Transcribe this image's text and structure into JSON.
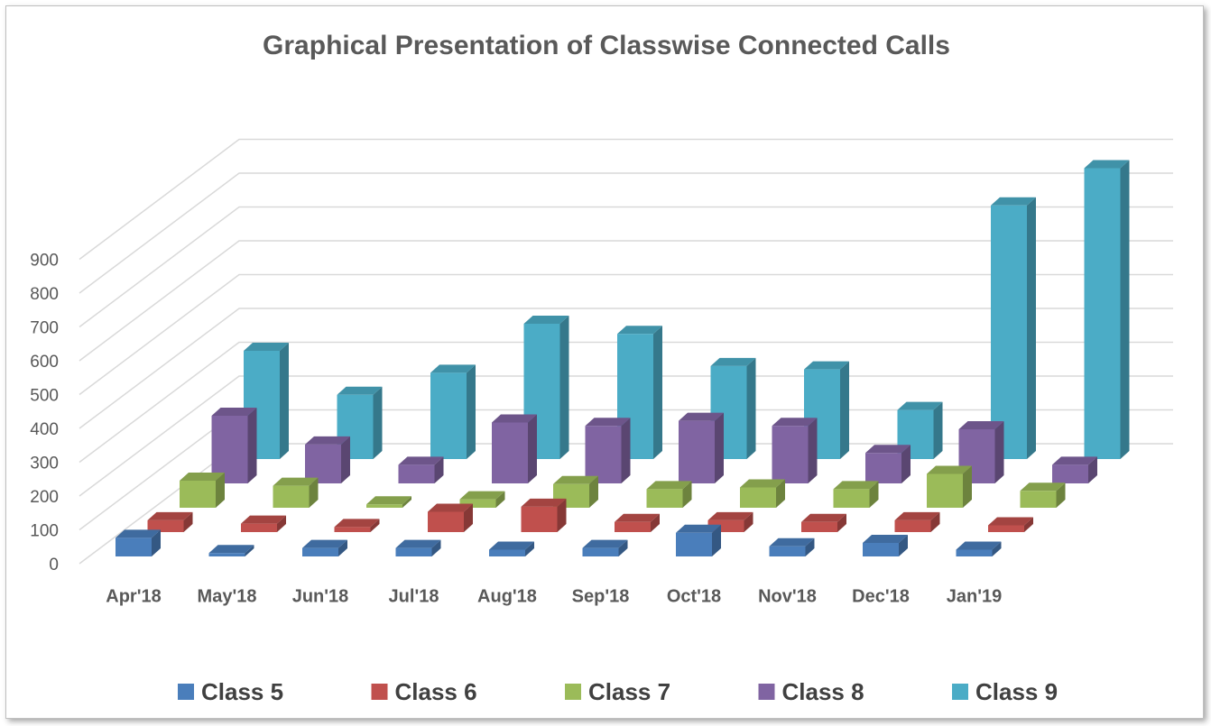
{
  "chart_data": {
    "type": "bar3d",
    "title": "Graphical Presentation of Classwise Connected Calls",
    "categories": [
      "Apr'18",
      "May'18",
      "Jun'18",
      "Jul'18",
      "Aug'18",
      "Sep'18",
      "Oct'18",
      "Nov'18",
      "Dec'18",
      "Jan'19"
    ],
    "series": [
      {
        "name": "Class 5",
        "color": "#4a7ebb",
        "values": [
          55,
          10,
          25,
          25,
          20,
          25,
          70,
          30,
          40,
          20
        ]
      },
      {
        "name": "Class 6",
        "color": "#c0504d",
        "values": [
          35,
          25,
          15,
          60,
          75,
          30,
          35,
          30,
          35,
          20
        ]
      },
      {
        "name": "Class 7",
        "color": "#9bbb59",
        "values": [
          80,
          65,
          10,
          25,
          70,
          55,
          60,
          55,
          100,
          50
        ]
      },
      {
        "name": "Class 8",
        "color": "#8064a2",
        "values": [
          200,
          115,
          55,
          180,
          170,
          185,
          170,
          90,
          160,
          55
        ]
      },
      {
        "name": "Class 9",
        "color": "#4bacc6",
        "values": [
          320,
          190,
          255,
          400,
          370,
          275,
          265,
          145,
          750,
          860
        ]
      }
    ],
    "ylim": [
      0,
      900
    ],
    "yticks": [
      0,
      100,
      200,
      300,
      400,
      500,
      600,
      700,
      800,
      900
    ],
    "grid": true
  }
}
